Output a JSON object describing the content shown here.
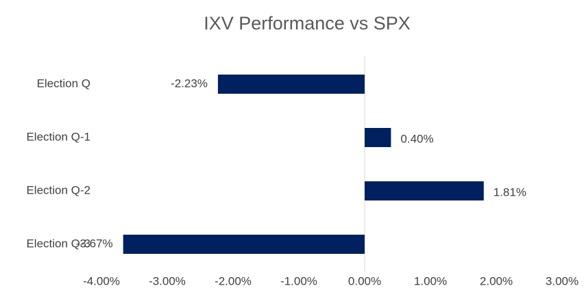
{
  "chart_data": {
    "type": "hbar",
    "title": "IXV Performance vs SPX",
    "categories": [
      "Election Q",
      "Election Q-1",
      "Election Q-2",
      "Election Q-3"
    ],
    "values": [
      -2.23,
      0.4,
      1.81,
      -3.67
    ],
    "value_labels": [
      "-2.23%",
      "0.40%",
      "1.81%",
      "-3.67%"
    ],
    "color": "#002060",
    "xlim": [
      -4,
      3
    ],
    "xticks": [
      {
        "value": -4,
        "label": "-4.00%"
      },
      {
        "value": -3,
        "label": "-3.00%"
      },
      {
        "value": -2,
        "label": "-2.00%"
      },
      {
        "value": -1,
        "label": "-1.00%"
      },
      {
        "value": 0,
        "label": "0.00%"
      },
      {
        "value": 1,
        "label": "1.00%"
      },
      {
        "value": 2,
        "label": "2.00%"
      },
      {
        "value": 3,
        "label": "3.00%"
      }
    ],
    "grid": false
  }
}
